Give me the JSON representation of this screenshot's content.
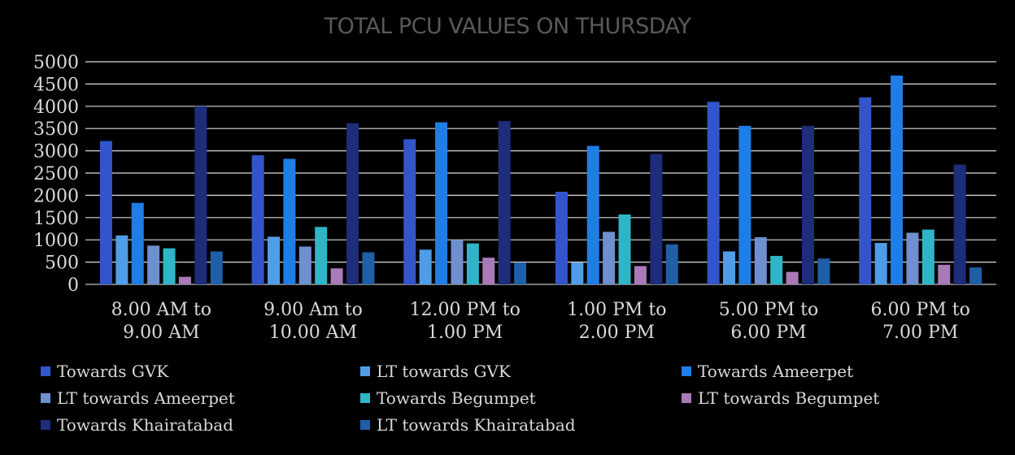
{
  "chart_data": {
    "type": "bar",
    "title": "TOTAL PCU VALUES ON THURSDAY",
    "xlabel": "",
    "ylabel": "",
    "ylim": [
      0,
      5000
    ],
    "yticks": [
      0,
      500,
      1000,
      1500,
      2000,
      2500,
      3000,
      3500,
      4000,
      4500,
      5000
    ],
    "ytick_labels": [
      "0",
      "500",
      "1000",
      "1500",
      "2000",
      "2500",
      "3000",
      "3500",
      "4000",
      "4500",
      "5000"
    ],
    "grid": true,
    "legend_position": "bottom",
    "categories": [
      [
        "8.00 AM to",
        "9.00 AM"
      ],
      [
        "9.00 Am to",
        "10.00 AM"
      ],
      [
        "12.00 PM to",
        "1.00 PM"
      ],
      [
        "1.00 PM to",
        "2.00 PM"
      ],
      [
        "5.00 PM to",
        "6.00 PM"
      ],
      [
        "6.00 PM to",
        "7.00 PM"
      ]
    ],
    "series": [
      {
        "name": "Towards GVK",
        "color": "#3355cc",
        "values": [
          3220,
          2900,
          3260,
          2080,
          4100,
          4200
        ]
      },
      {
        "name": "LT towards GVK",
        "color": "#4f9de8",
        "values": [
          1100,
          1070,
          780,
          490,
          740,
          930
        ]
      },
      {
        "name": "Towards Ameerpet",
        "color": "#1e7ee6",
        "values": [
          1830,
          2820,
          3640,
          3110,
          3560,
          4690
        ]
      },
      {
        "name": "LT towards Ameerpet",
        "color": "#6f8fcf",
        "values": [
          870,
          850,
          1000,
          1180,
          1060,
          1160
        ]
      },
      {
        "name": "Towards Begumpet",
        "color": "#2fb5c8",
        "values": [
          810,
          1290,
          920,
          1570,
          640,
          1230
        ]
      },
      {
        "name": "LT towards Begumpet",
        "color": "#a87ab7",
        "values": [
          170,
          360,
          600,
          410,
          280,
          440
        ]
      },
      {
        "name": "Towards Khairatabad",
        "color": "#1e2d7a",
        "values": [
          4000,
          3620,
          3670,
          2930,
          3560,
          2690
        ]
      },
      {
        "name": "LT towards Khairatabad",
        "color": "#1f5fa8",
        "values": [
          740,
          720,
          490,
          900,
          580,
          380
        ]
      }
    ]
  }
}
